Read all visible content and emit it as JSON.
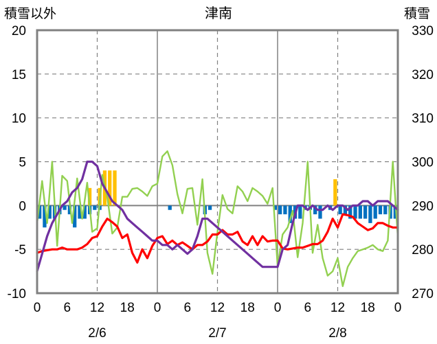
{
  "chart_data": {
    "type": "bar+line",
    "title": "津南",
    "y_left_label": "積雪以外",
    "y_right_label": "積雪",
    "y_left_ticks": [
      20,
      15,
      10,
      5,
      0,
      -5,
      -10
    ],
    "y_right_ticks": [
      330,
      320,
      310,
      300,
      290,
      280,
      270
    ],
    "y_left_range": [
      -10,
      20
    ],
    "y_right_range": [
      270,
      330
    ],
    "x_hours_total": 72,
    "x_tick_labels": [
      "0",
      "6",
      "12",
      "18",
      "0",
      "6",
      "12",
      "18",
      "0",
      "6",
      "12",
      "18",
      "0"
    ],
    "day_labels": [
      "2/6",
      "2/7",
      "2/8"
    ],
    "grid": "dashed at 12h, solid at day boundaries, solid at y=0",
    "colors": {
      "precip_bar": "#ffc000",
      "snow_change_bar": "#0070c0",
      "temperature": "#ff0000",
      "wind": "#92d050",
      "snow_depth": "#7030a0",
      "frame": "#808080",
      "grid": "#808080"
    },
    "series": [
      {
        "role": "precipitation",
        "style": "bar_up",
        "values": [
          {
            "x": 10,
            "y": 2.0
          },
          {
            "x": 12,
            "y": 2.0
          },
          {
            "x": 13,
            "y": 4.0
          },
          {
            "x": 14,
            "y": 4.0
          },
          {
            "x": 15,
            "y": 4.0
          },
          {
            "x": 59,
            "y": 3.0
          }
        ]
      },
      {
        "role": "snow_change",
        "style": "bar_down",
        "values": [
          {
            "x": 0,
            "y": -1.5
          },
          {
            "x": 1,
            "y": -2.5
          },
          {
            "x": 2,
            "y": -1.5
          },
          {
            "x": 3,
            "y": -1.5
          },
          {
            "x": 4,
            "y": -1.0
          },
          {
            "x": 5,
            "y": -0.5
          },
          {
            "x": 6,
            "y": -1.0
          },
          {
            "x": 7,
            "y": -2.5
          },
          {
            "x": 8,
            "y": -1.5
          },
          {
            "x": 9,
            "y": -1.5
          },
          {
            "x": 10,
            "y": -1.0
          },
          {
            "x": 11,
            "y": -0.5
          },
          {
            "x": 12,
            "y": -0.5
          },
          {
            "x": 26,
            "y": -0.5
          },
          {
            "x": 33,
            "y": -1.0
          },
          {
            "x": 34,
            "y": -0.5
          },
          {
            "x": 47,
            "y": -0.5
          },
          {
            "x": 48,
            "y": -1.0
          },
          {
            "x": 49,
            "y": -1.0
          },
          {
            "x": 50,
            "y": -2.0
          },
          {
            "x": 51,
            "y": -1.5
          },
          {
            "x": 52,
            "y": -1.5
          },
          {
            "x": 53,
            "y": -0.5
          },
          {
            "x": 54,
            "y": -0.5
          },
          {
            "x": 55,
            "y": -1.0
          },
          {
            "x": 56,
            "y": -1.5
          },
          {
            "x": 58,
            "y": -0.5
          },
          {
            "x": 60,
            "y": -1.0
          },
          {
            "x": 61,
            "y": -1.0
          },
          {
            "x": 62,
            "y": -1.5
          },
          {
            "x": 63,
            "y": -1.5
          },
          {
            "x": 64,
            "y": -1.5
          },
          {
            "x": 65,
            "y": -1.5
          },
          {
            "x": 66,
            "y": -2.0
          },
          {
            "x": 67,
            "y": -1.5
          },
          {
            "x": 68,
            "y": -1.0
          },
          {
            "x": 69,
            "y": -1.0
          },
          {
            "x": 70,
            "y": -1.5
          },
          {
            "x": 71,
            "y": -1.5
          },
          {
            "x": 72,
            "y": -0.5
          }
        ]
      },
      {
        "role": "temperature",
        "style": "line",
        "points": [
          [
            0,
            -5.4
          ],
          [
            1,
            -5.2
          ],
          [
            2,
            -5.1
          ],
          [
            3,
            -5.0
          ],
          [
            4,
            -5.0
          ],
          [
            5,
            -4.8
          ],
          [
            6,
            -5.0
          ],
          [
            7,
            -5.0
          ],
          [
            8,
            -5.0
          ],
          [
            9,
            -4.8
          ],
          [
            10,
            -4.4
          ],
          [
            11,
            -3.7
          ],
          [
            12,
            -3.5
          ],
          [
            13,
            -2.4
          ],
          [
            14,
            -1.5
          ],
          [
            15,
            -1.9
          ],
          [
            16,
            -2.4
          ],
          [
            17,
            -3.7
          ],
          [
            18,
            -3.3
          ],
          [
            19,
            -5.4
          ],
          [
            20,
            -6.5
          ],
          [
            21,
            -5.0
          ],
          [
            22,
            -6.0
          ],
          [
            23,
            -4.6
          ],
          [
            24,
            -3.7
          ],
          [
            25,
            -3.5
          ],
          [
            26,
            -4.4
          ],
          [
            27,
            -4.0
          ],
          [
            28,
            -4.5
          ],
          [
            29,
            -4.2
          ],
          [
            30,
            -4.6
          ],
          [
            31,
            -5.0
          ],
          [
            32,
            -4.5
          ],
          [
            33,
            -4.5
          ],
          [
            34,
            -4.1
          ],
          [
            35,
            -3.3
          ],
          [
            36,
            -3.3
          ],
          [
            37,
            -2.8
          ],
          [
            38,
            -3.3
          ],
          [
            39,
            -3.3
          ],
          [
            40,
            -3.0
          ],
          [
            41,
            -4.1
          ],
          [
            42,
            -4.5
          ],
          [
            43,
            -3.5
          ],
          [
            44,
            -4.5
          ],
          [
            45,
            -3.5
          ],
          [
            46,
            -4.1
          ],
          [
            47,
            -4.0
          ],
          [
            48,
            -4.0
          ],
          [
            49,
            -4.9
          ],
          [
            50,
            -5.0
          ],
          [
            51,
            -4.9
          ],
          [
            52,
            -4.8
          ],
          [
            53,
            -4.8
          ],
          [
            54,
            -4.6
          ],
          [
            55,
            -4.4
          ],
          [
            56,
            -4.4
          ],
          [
            57,
            -4.0
          ],
          [
            58,
            -3.0
          ],
          [
            59,
            -1.5
          ],
          [
            60,
            -2.5
          ],
          [
            61,
            -1.0
          ],
          [
            62,
            -1.1
          ],
          [
            63,
            -1.3
          ],
          [
            64,
            -2.0
          ],
          [
            65,
            -2.4
          ],
          [
            66,
            -2.8
          ],
          [
            67,
            -2.6
          ],
          [
            68,
            -2.0
          ],
          [
            69,
            -2.0
          ],
          [
            70,
            -2.3
          ],
          [
            71,
            -2.5
          ],
          [
            72,
            -2.5
          ]
        ]
      },
      {
        "role": "wind",
        "style": "line",
        "points": [
          [
            0,
            -2
          ],
          [
            1,
            2.8
          ],
          [
            2,
            -2
          ],
          [
            3,
            5
          ],
          [
            4,
            -4.6
          ],
          [
            5,
            3.4
          ],
          [
            6,
            2.8
          ],
          [
            7,
            -2
          ],
          [
            8,
            3.1
          ],
          [
            9,
            -1.5
          ],
          [
            10,
            2.6
          ],
          [
            11,
            -3.0
          ],
          [
            12,
            -2.6
          ],
          [
            13,
            3.5
          ],
          [
            14,
            1.0
          ],
          [
            15,
            -3.2
          ],
          [
            16,
            -2.5
          ],
          [
            17,
            1.0
          ],
          [
            18,
            1.0
          ],
          [
            19,
            1.9
          ],
          [
            20,
            2.0
          ],
          [
            21,
            1.6
          ],
          [
            22,
            1.1
          ],
          [
            23,
            2.2
          ],
          [
            24,
            2.5
          ],
          [
            25,
            5.6
          ],
          [
            26,
            6.2
          ],
          [
            27,
            4.6
          ],
          [
            28,
            1.3
          ],
          [
            29,
            -0.9
          ],
          [
            30,
            1.9
          ],
          [
            31,
            2.0
          ],
          [
            32,
            -2.2
          ],
          [
            33,
            3.0
          ],
          [
            34,
            -5.4
          ],
          [
            35,
            -7.8
          ],
          [
            36,
            -3.0
          ],
          [
            37,
            1.2
          ],
          [
            38,
            -0.4
          ],
          [
            39,
            -0.9
          ],
          [
            40,
            2.2
          ],
          [
            41,
            1.6
          ],
          [
            42,
            0.5
          ],
          [
            43,
            2.0
          ],
          [
            44,
            1.6
          ],
          [
            45,
            1.1
          ],
          [
            46,
            0.2
          ],
          [
            47,
            2.0
          ],
          [
            48,
            -6.9
          ],
          [
            49,
            -3.3
          ],
          [
            50,
            -2.5
          ],
          [
            51,
            -0.6
          ],
          [
            52,
            -5.9
          ],
          [
            53,
            -2.0
          ],
          [
            54,
            5.0
          ],
          [
            55,
            -5.4
          ],
          [
            56,
            -2.2
          ],
          [
            57,
            -6.0
          ],
          [
            58,
            -8.0
          ],
          [
            59,
            -7.5
          ],
          [
            60,
            -6.0
          ],
          [
            61,
            -9.2
          ],
          [
            62,
            -7.0
          ],
          [
            63,
            -6.0
          ],
          [
            64,
            -5.2
          ],
          [
            65,
            -5.0
          ],
          [
            66,
            -4.8
          ],
          [
            67,
            -4.5
          ],
          [
            68,
            -5.0
          ],
          [
            69,
            -5.2
          ],
          [
            70,
            -4.0
          ],
          [
            71,
            5.0
          ],
          [
            72,
            -3.6
          ]
        ]
      },
      {
        "role": "snow_depth",
        "style": "line",
        "axis": "right",
        "points": [
          [
            0,
            275
          ],
          [
            1,
            279
          ],
          [
            2,
            283
          ],
          [
            3,
            286
          ],
          [
            4,
            288
          ],
          [
            5,
            290
          ],
          [
            6,
            291
          ],
          [
            7,
            293
          ],
          [
            8,
            294
          ],
          [
            9,
            296
          ],
          [
            10,
            300
          ],
          [
            11,
            300
          ],
          [
            12,
            299
          ],
          [
            13,
            295
          ],
          [
            14,
            293
          ],
          [
            15,
            291
          ],
          [
            16,
            290
          ],
          [
            17,
            289
          ],
          [
            18,
            287
          ],
          [
            19,
            286
          ],
          [
            20,
            285
          ],
          [
            21,
            284
          ],
          [
            22,
            283
          ],
          [
            23,
            282
          ],
          [
            24,
            282
          ],
          [
            25,
            281
          ],
          [
            26,
            281
          ],
          [
            27,
            280
          ],
          [
            28,
            281
          ],
          [
            29,
            280
          ],
          [
            30,
            279
          ],
          [
            31,
            280
          ],
          [
            32,
            283
          ],
          [
            33,
            287
          ],
          [
            34,
            287
          ],
          [
            35,
            286
          ],
          [
            36,
            285
          ],
          [
            37,
            284
          ],
          [
            38,
            283
          ],
          [
            39,
            282
          ],
          [
            40,
            281
          ],
          [
            41,
            280
          ],
          [
            42,
            279
          ],
          [
            43,
            278
          ],
          [
            44,
            277
          ],
          [
            45,
            276
          ],
          [
            46,
            276
          ],
          [
            47,
            276
          ],
          [
            48,
            276
          ],
          [
            49,
            280
          ],
          [
            50,
            281
          ],
          [
            51,
            286
          ],
          [
            52,
            290
          ],
          [
            53,
            290
          ],
          [
            54,
            289
          ],
          [
            55,
            290
          ],
          [
            56,
            289
          ],
          [
            57,
            289
          ],
          [
            58,
            290
          ],
          [
            59,
            289
          ],
          [
            60,
            290
          ],
          [
            61,
            290
          ],
          [
            62,
            289
          ],
          [
            63,
            290
          ],
          [
            64,
            290
          ],
          [
            65,
            291
          ],
          [
            66,
            291
          ],
          [
            67,
            290
          ],
          [
            68,
            291
          ],
          [
            69,
            291
          ],
          [
            70,
            291
          ],
          [
            71,
            290
          ],
          [
            72,
            289
          ]
        ]
      }
    ]
  }
}
